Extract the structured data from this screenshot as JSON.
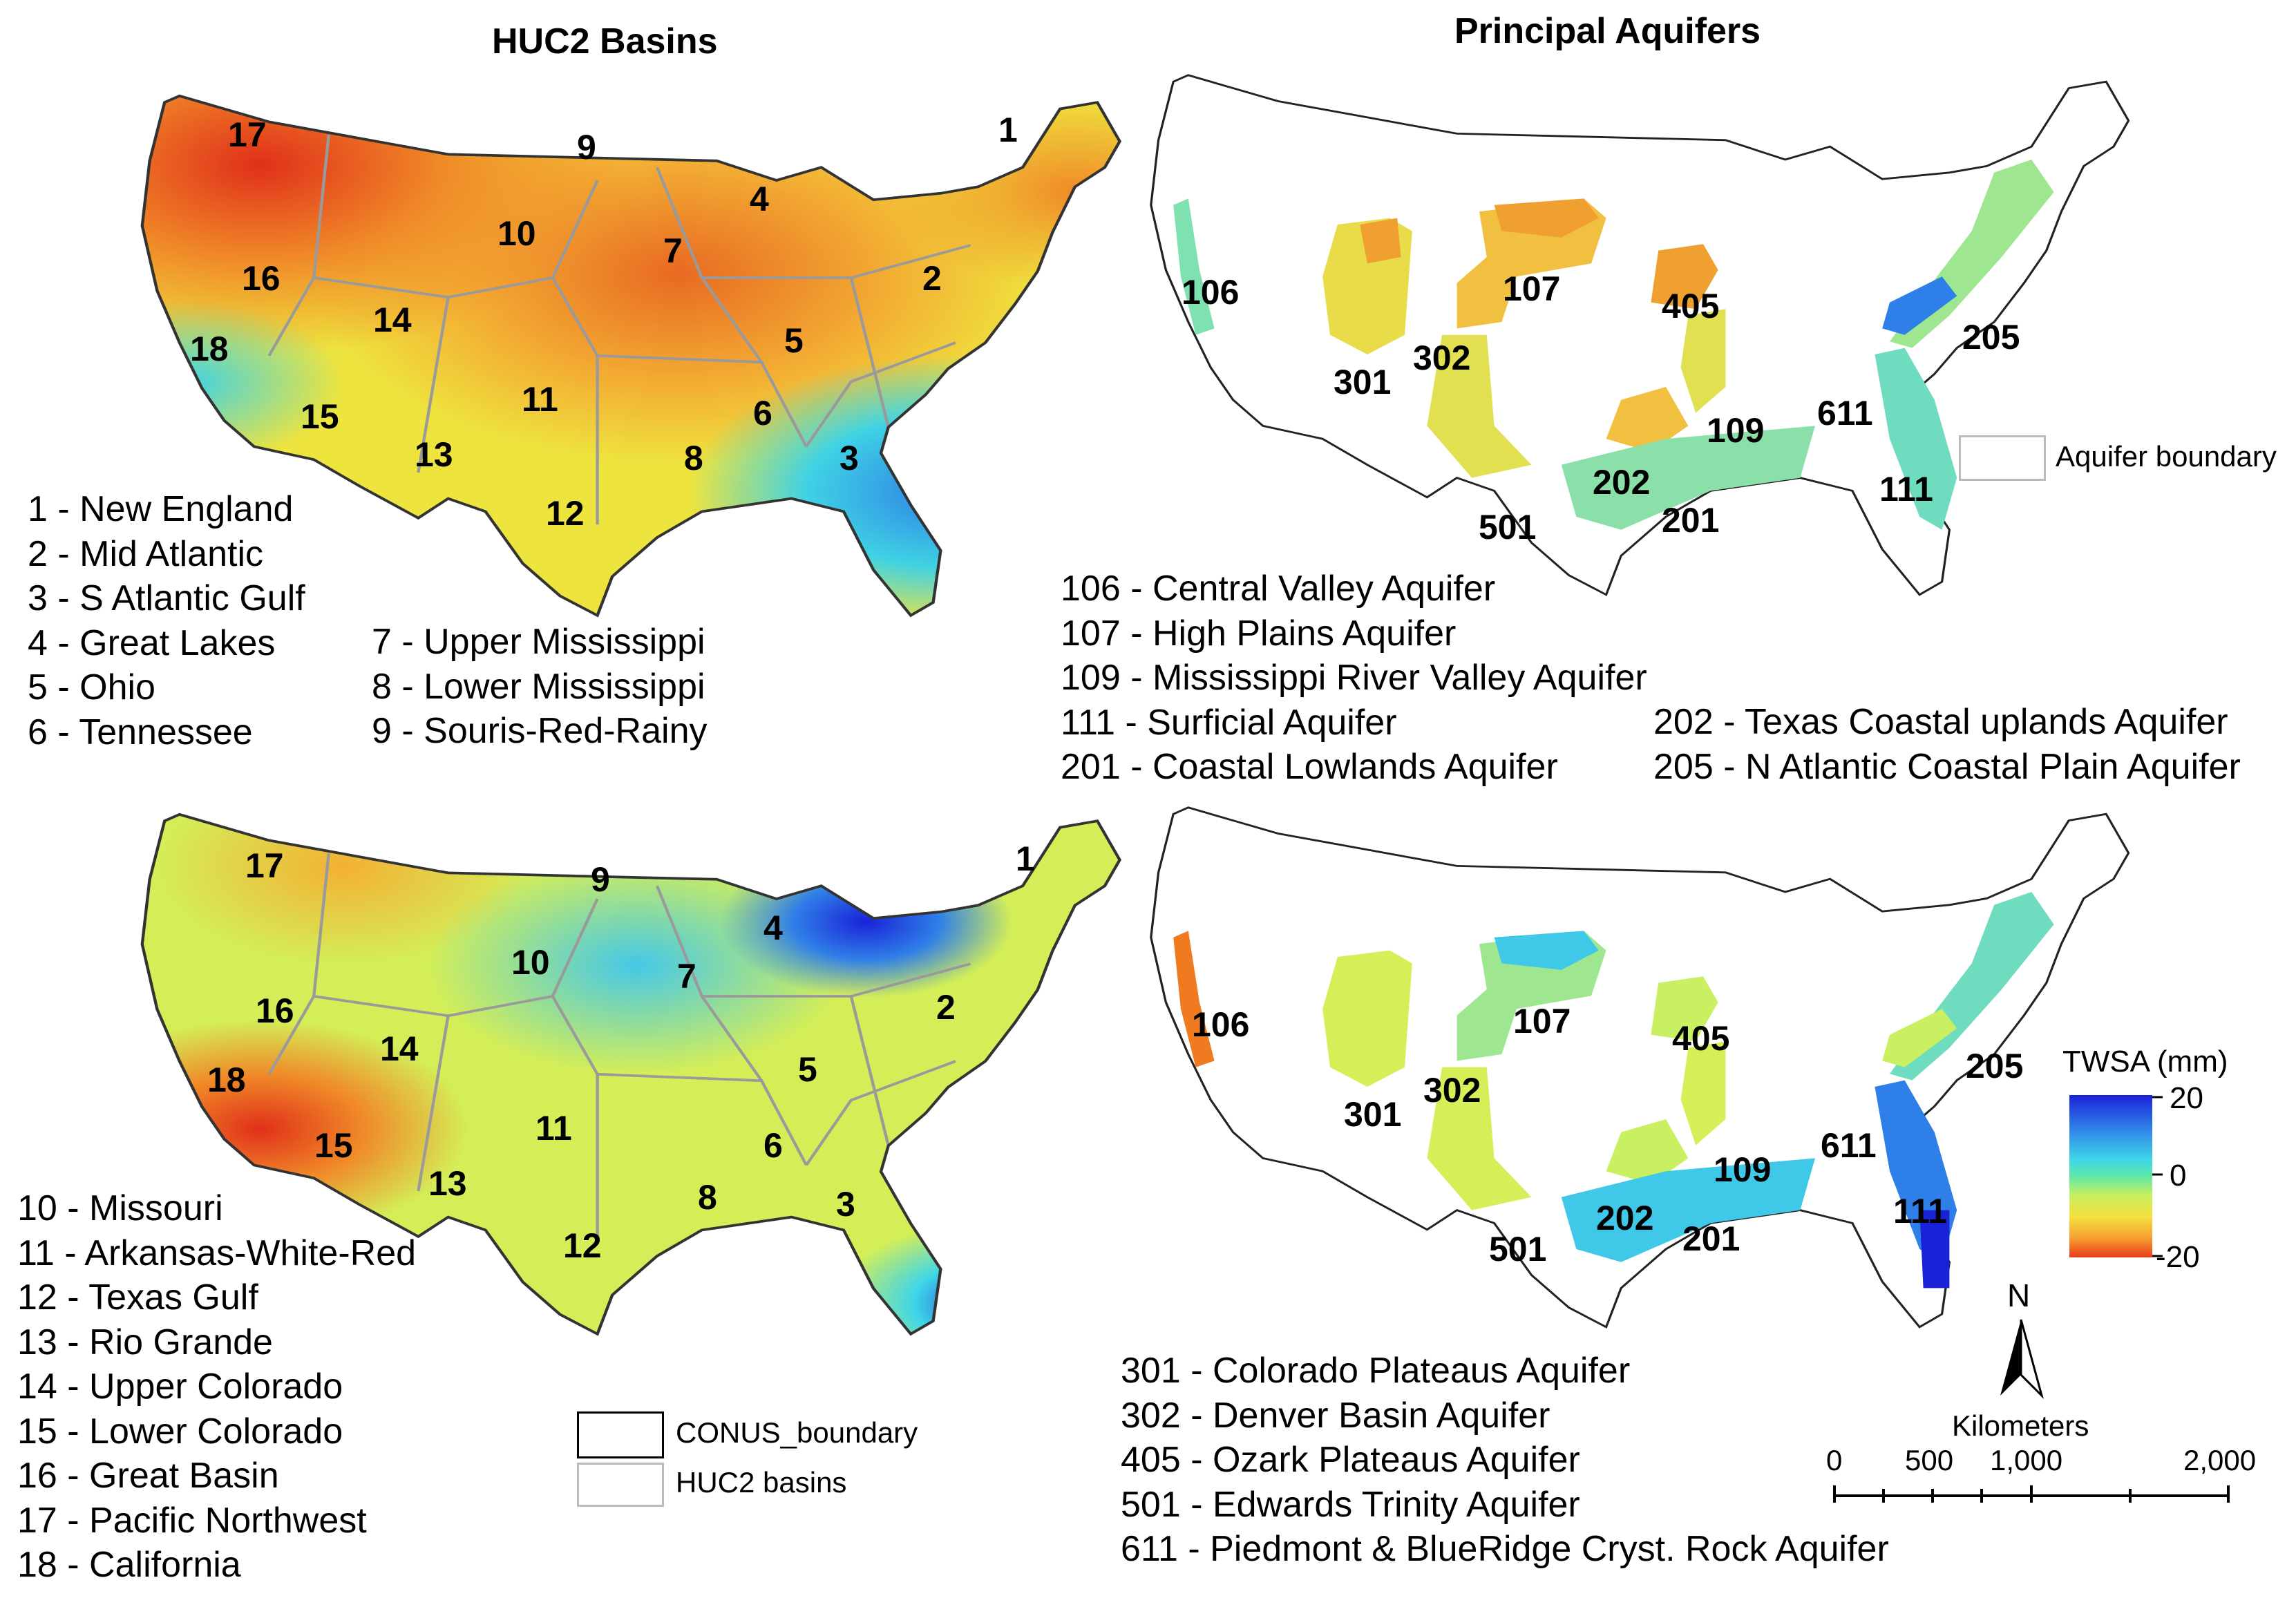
{
  "panels": {
    "huc2": {
      "title": "HUC2 Basins",
      "top_map_labels": [
        "17",
        "9",
        "1",
        "10",
        "7",
        "4",
        "16",
        "14",
        "2",
        "18",
        "5",
        "11",
        "15",
        "13",
        "6",
        "3",
        "8",
        "12"
      ],
      "bottom_map_labels": [
        "17",
        "9",
        "1",
        "10",
        "4",
        "7",
        "16",
        "2",
        "14",
        "18",
        "5",
        "11",
        "15",
        "13",
        "6",
        "8",
        "3",
        "12"
      ],
      "legend_a": [
        "1 - New England",
        "2 - Mid Atlantic",
        "3 - S Atlantic Gulf",
        "4 - Great Lakes",
        "5 - Ohio",
        "6 - Tennessee"
      ],
      "legend_b": [
        "7 - Upper Mississippi",
        "8 - Lower Mississippi",
        "9 - Souris-Red-Rainy"
      ],
      "legend_c": [
        "10 - Missouri",
        "11 - Arkansas-White-Red",
        "12 - Texas Gulf",
        "13 - Rio Grande",
        "14 - Upper Colorado",
        "15 - Lower Colorado",
        "16 - Great Basin",
        "17 - Pacific Northwest",
        "18 - California"
      ],
      "boundary_legend": {
        "conus": "CONUS_boundary",
        "huc2": "HUC2 basins"
      }
    },
    "aquifers": {
      "title": "Principal Aquifers",
      "top_map_labels": [
        "106",
        "107",
        "405",
        "302",
        "301",
        "205",
        "611",
        "109",
        "202",
        "111",
        "501",
        "201"
      ],
      "bottom_map_labels": [
        "106",
        "107",
        "405",
        "302",
        "301",
        "205",
        "611",
        "109",
        "111",
        "202",
        "201",
        "501"
      ],
      "boundary_legend": "Aquifer boundary",
      "legend_a": [
        "106 - Central Valley Aquifer",
        "107 - High Plains Aquifer",
        "109 - Mississippi River Valley Aquifer",
        "111 - Surficial Aquifer",
        "201 - Coastal Lowlands Aquifer"
      ],
      "legend_b": [
        "202 - Texas Coastal uplands Aquifer",
        "205 - N Atlantic Coastal Plain Aquifer"
      ],
      "legend_c": [
        "301 - Colorado Plateaus Aquifer",
        "302 - Denver Basin Aquifer",
        "405 - Ozark Plateaus Aquifer",
        "501 - Edwards Trinity Aquifer",
        "611 - Piedmont & BlueRidge Cryst. Rock Aquifer"
      ]
    }
  },
  "colorbar": {
    "title": "TWSA (mm)",
    "ticks": [
      "20",
      "0",
      "-20"
    ],
    "colors": [
      "#1a22d8",
      "#2f7fe8",
      "#3fd6e8",
      "#5fe8a8",
      "#c8f060",
      "#f4e040",
      "#f7a030",
      "#e83a1c"
    ]
  },
  "north_arrow": {
    "label": "N"
  },
  "scale_bar": {
    "title": "Kilometers",
    "ticks": [
      "0",
      "500",
      "1,000",
      "2,000"
    ]
  }
}
